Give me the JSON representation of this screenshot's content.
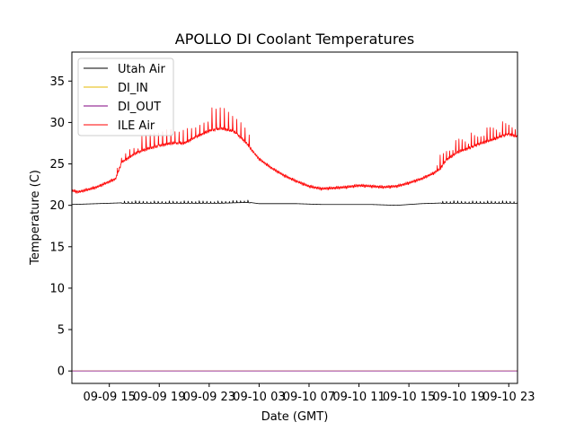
{
  "chart_data": {
    "type": "line",
    "title": "APOLLO DI Coolant Temperatures",
    "xlabel": "Date (GMT)",
    "ylabel": "Temperature (C)",
    "x_unit": "hours since 09-09 12:00",
    "xlim": [
      0,
      35.7
    ],
    "ylim": [
      -1.5,
      38.5
    ],
    "yticks": [
      0,
      5,
      10,
      15,
      20,
      25,
      30,
      35
    ],
    "xticks": [
      {
        "x": 3,
        "label": "09-09 15"
      },
      {
        "x": 7,
        "label": "09-09 19"
      },
      {
        "x": 11,
        "label": "09-09 23"
      },
      {
        "x": 15,
        "label": "09-10 03"
      },
      {
        "x": 19,
        "label": "09-10 07"
      },
      {
        "x": 23,
        "label": "09-10 11"
      },
      {
        "x": 27,
        "label": "09-10 15"
      },
      {
        "x": 31,
        "label": "09-10 19"
      },
      {
        "x": 35,
        "label": "09-10 23"
      }
    ],
    "legend_position": "upper-left",
    "series": [
      {
        "name": "Utah Air",
        "color": "#000000",
        "x": [
          0,
          2,
          4,
          6,
          8,
          10,
          12,
          14,
          15,
          16,
          18,
          20,
          22,
          24,
          26,
          28,
          30,
          32,
          34,
          35.7
        ],
        "values": [
          20.1,
          20.2,
          20.3,
          20.3,
          20.3,
          20.3,
          20.3,
          20.4,
          20.2,
          20.2,
          20.2,
          20.1,
          20.1,
          20.1,
          20.0,
          20.2,
          20.3,
          20.3,
          20.3,
          20.3
        ]
      },
      {
        "name": "DI_IN",
        "color": "#e6b800",
        "x": [
          0,
          35.7
        ],
        "values": [
          0,
          0
        ]
      },
      {
        "name": "DI_OUT",
        "color": "#800080",
        "x": [
          0,
          35.7
        ],
        "values": [
          0,
          0
        ]
      },
      {
        "name": "ILE Air",
        "color": "#ff0000",
        "x": [
          0,
          0.5,
          2,
          3.5,
          4,
          5,
          6,
          7,
          8,
          9,
          10,
          11,
          12,
          13,
          14,
          14.5,
          15,
          16,
          17,
          18,
          19,
          20,
          21,
          22,
          23,
          24,
          25,
          26,
          27,
          28,
          29,
          29.5,
          30,
          31,
          32,
          33,
          34,
          35,
          35.7
        ],
        "values": [
          21.8,
          21.6,
          22.2,
          23.2,
          25.2,
          26.2,
          26.8,
          27.2,
          27.5,
          27.5,
          28.3,
          29.0,
          29.3,
          28.9,
          27.5,
          26.5,
          25.6,
          24.5,
          23.6,
          22.9,
          22.3,
          22.0,
          22.1,
          22.2,
          22.4,
          22.3,
          22.2,
          22.3,
          22.7,
          23.2,
          23.9,
          24.4,
          25.5,
          26.5,
          27.0,
          27.6,
          28.1,
          28.6,
          28.3
        ]
      }
    ]
  }
}
